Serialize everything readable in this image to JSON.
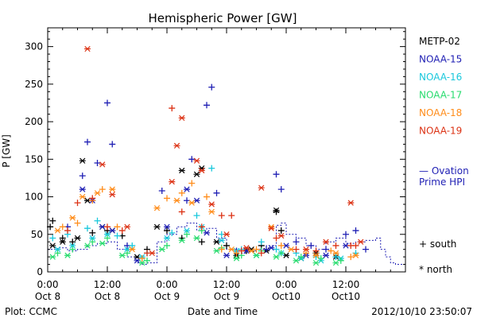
{
  "chart_data": {
    "type": "scatter",
    "title": "Hemispheric Power [GW]",
    "ylabel": "P [GW]",
    "xlabel": "Date and Time",
    "ylim": [
      0,
      325
    ],
    "xlim_hours": [
      0,
      72
    ],
    "y_ticks": [
      0,
      50,
      100,
      150,
      200,
      250,
      300
    ],
    "x_ticks": [
      {
        "h": 0,
        "time": "0:00",
        "day": "Oct 8"
      },
      {
        "h": 12,
        "time": "12:00",
        "day": "Oct 8"
      },
      {
        "h": 24,
        "time": "0:00",
        "day": "Oct 9"
      },
      {
        "h": 36,
        "time": "12:00",
        "day": "Oct 9"
      },
      {
        "h": 48,
        "time": "0:00",
        "day": "Oct10"
      },
      {
        "h": 60,
        "time": "12:00",
        "day": "Oct10"
      }
    ],
    "footer_left": "Plot: CCMC",
    "footer_right": "2012/10/10 23:50:07",
    "ovation_label": [
      "— Ovation",
      "Prime HPI"
    ],
    "symbol_legend": {
      "south": "+ south",
      "north": "* north"
    },
    "series": [
      {
        "name": "METP-02",
        "color": "#000000",
        "south": [
          [
            0.5,
            60
          ],
          [
            1,
            68
          ],
          [
            3,
            45
          ],
          [
            5,
            40
          ],
          [
            9,
            52
          ],
          [
            12,
            55
          ],
          [
            15,
            48
          ],
          [
            20,
            30
          ],
          [
            24,
            55
          ],
          [
            27,
            45
          ],
          [
            31,
            40
          ],
          [
            36,
            35
          ],
          [
            40,
            28
          ],
          [
            43,
            35
          ],
          [
            46,
            80
          ],
          [
            47,
            55
          ]
        ],
        "north": [
          [
            1,
            35
          ],
          [
            3,
            40
          ],
          [
            6,
            45
          ],
          [
            7,
            148
          ],
          [
            8,
            95
          ],
          [
            11,
            60
          ],
          [
            13,
            55
          ],
          [
            18,
            20
          ],
          [
            22,
            60
          ],
          [
            27,
            135
          ],
          [
            30,
            130
          ],
          [
            31,
            138
          ],
          [
            34,
            40
          ],
          [
            38,
            22
          ],
          [
            41,
            30
          ],
          [
            44,
            28
          ],
          [
            46,
            82
          ],
          [
            48,
            22
          ],
          [
            51,
            18
          ],
          [
            54,
            25
          ],
          [
            58,
            20
          ]
        ]
      },
      {
        "name": "NOAA-15",
        "color": "#1f1fb4",
        "south": [
          [
            8,
            173
          ],
          [
            12,
            225
          ],
          [
            13,
            170
          ],
          [
            10,
            145
          ],
          [
            7,
            128
          ],
          [
            4,
            60
          ],
          [
            16,
            35
          ],
          [
            23,
            108
          ],
          [
            29,
            150
          ],
          [
            32,
            222
          ],
          [
            33,
            246
          ],
          [
            34,
            105
          ],
          [
            28,
            95
          ],
          [
            38,
            28
          ],
          [
            44,
            30
          ],
          [
            46,
            130
          ],
          [
            47,
            110
          ],
          [
            50,
            40
          ],
          [
            53,
            35
          ],
          [
            56,
            30
          ],
          [
            60,
            50
          ],
          [
            62,
            55
          ],
          [
            64,
            30
          ]
        ],
        "north": [
          [
            7,
            110
          ],
          [
            9,
            95
          ],
          [
            11,
            60
          ],
          [
            13,
            55
          ],
          [
            18,
            15
          ],
          [
            24,
            60
          ],
          [
            28,
            110
          ],
          [
            30,
            95
          ],
          [
            32,
            52
          ],
          [
            36,
            22
          ],
          [
            40,
            28
          ],
          [
            45,
            32
          ],
          [
            48,
            35
          ],
          [
            52,
            22
          ],
          [
            56,
            22
          ],
          [
            60,
            35
          ]
        ]
      },
      {
        "name": "NOAA-16",
        "color": "#19c8dc",
        "south": [
          [
            1,
            45
          ],
          [
            4,
            50
          ],
          [
            8,
            58
          ],
          [
            10,
            68
          ],
          [
            14,
            48
          ],
          [
            17,
            35
          ],
          [
            20,
            25
          ],
          [
            25,
            52
          ],
          [
            30,
            75
          ],
          [
            33,
            138
          ],
          [
            35,
            50
          ],
          [
            39,
            30
          ],
          [
            43,
            40
          ],
          [
            46,
            30
          ],
          [
            50,
            25
          ],
          [
            54,
            20
          ],
          [
            58,
            20
          ],
          [
            62,
            25
          ]
        ],
        "north": [
          [
            2,
            30
          ],
          [
            5,
            35
          ],
          [
            9,
            45
          ],
          [
            12,
            50
          ],
          [
            16,
            30
          ],
          [
            19,
            20
          ],
          [
            24,
            45
          ],
          [
            28,
            55
          ],
          [
            31,
            60
          ],
          [
            35,
            42
          ],
          [
            38,
            28
          ],
          [
            42,
            22
          ],
          [
            47,
            25
          ],
          [
            51,
            18
          ],
          [
            55,
            15
          ],
          [
            59,
            18
          ]
        ]
      },
      {
        "name": "NOAA-17",
        "color": "#28dc6e",
        "south": [
          [
            2,
            25
          ],
          [
            5,
            30
          ],
          [
            9,
            40
          ],
          [
            12,
            45
          ],
          [
            16,
            25
          ],
          [
            20,
            15
          ],
          [
            24,
            35
          ],
          [
            28,
            50
          ],
          [
            31,
            55
          ],
          [
            35,
            32
          ],
          [
            39,
            22
          ],
          [
            43,
            28
          ],
          [
            47,
            25
          ],
          [
            51,
            20
          ],
          [
            55,
            18
          ],
          [
            59,
            15
          ]
        ],
        "north": [
          [
            1,
            20
          ],
          [
            4,
            22
          ],
          [
            8,
            35
          ],
          [
            11,
            38
          ],
          [
            15,
            22
          ],
          [
            19,
            12
          ],
          [
            23,
            30
          ],
          [
            27,
            42
          ],
          [
            30,
            45
          ],
          [
            34,
            28
          ],
          [
            38,
            18
          ],
          [
            42,
            22
          ],
          [
            46,
            20
          ],
          [
            50,
            15
          ],
          [
            54,
            12
          ],
          [
            58,
            12
          ]
        ]
      },
      {
        "name": "NOAA-18",
        "color": "#ff8c19",
        "south": [
          [
            3,
            60
          ],
          [
            6,
            65
          ],
          [
            9,
            95
          ],
          [
            11,
            110
          ],
          [
            14,
            60
          ],
          [
            19,
            18
          ],
          [
            24,
            98
          ],
          [
            27,
            105
          ],
          [
            29,
            118
          ],
          [
            32,
            100
          ],
          [
            35,
            30
          ],
          [
            38,
            25
          ],
          [
            42,
            30
          ],
          [
            47,
            35
          ],
          [
            52,
            25
          ],
          [
            57,
            28
          ],
          [
            61,
            20
          ]
        ],
        "north": [
          [
            2,
            55
          ],
          [
            5,
            72
          ],
          [
            7,
            100
          ],
          [
            10,
            105
          ],
          [
            13,
            110
          ],
          [
            17,
            30
          ],
          [
            22,
            85
          ],
          [
            26,
            95
          ],
          [
            29,
            92
          ],
          [
            33,
            80
          ],
          [
            37,
            30
          ],
          [
            41,
            28
          ],
          [
            45,
            60
          ],
          [
            49,
            30
          ],
          [
            54,
            22
          ],
          [
            58,
            25
          ],
          [
            62,
            22
          ]
        ]
      },
      {
        "name": "NOAA-19",
        "color": "#dc3214",
        "south": [
          [
            4,
            55
          ],
          [
            6,
            92
          ],
          [
            9,
            98
          ],
          [
            12,
            60
          ],
          [
            15,
            55
          ],
          [
            20,
            25
          ],
          [
            25,
            218
          ],
          [
            27,
            80
          ],
          [
            31,
            60
          ],
          [
            35,
            75
          ],
          [
            37,
            75
          ],
          [
            39,
            28
          ],
          [
            43,
            25
          ],
          [
            46,
            45
          ],
          [
            50,
            30
          ],
          [
            54,
            28
          ],
          [
            58,
            35
          ],
          [
            61,
            35
          ],
          [
            62,
            35
          ]
        ],
        "north": [
          [
            8,
            297
          ],
          [
            11,
            143
          ],
          [
            13,
            103
          ],
          [
            16,
            60
          ],
          [
            21,
            25
          ],
          [
            25,
            120
          ],
          [
            26,
            168
          ],
          [
            27,
            205
          ],
          [
            30,
            148
          ],
          [
            31,
            135
          ],
          [
            33,
            90
          ],
          [
            36,
            50
          ],
          [
            40,
            32
          ],
          [
            43,
            112
          ],
          [
            45,
            58
          ],
          [
            47,
            48
          ],
          [
            52,
            30
          ],
          [
            56,
            40
          ],
          [
            61,
            92
          ],
          [
            63,
            40
          ]
        ]
      }
    ],
    "ovation_hpi": [
      [
        0,
        30
      ],
      [
        2,
        32
      ],
      [
        4,
        28
      ],
      [
        6,
        30
      ],
      [
        8,
        35
      ],
      [
        10,
        38
      ],
      [
        12,
        40
      ],
      [
        14,
        30
      ],
      [
        16,
        20
      ],
      [
        18,
        12
      ],
      [
        19,
        10
      ],
      [
        20,
        12
      ],
      [
        22,
        40
      ],
      [
        24,
        50
      ],
      [
        26,
        60
      ],
      [
        28,
        65
      ],
      [
        30,
        55
      ],
      [
        32,
        58
      ],
      [
        34,
        45
      ],
      [
        36,
        30
      ],
      [
        38,
        25
      ],
      [
        40,
        28
      ],
      [
        42,
        30
      ],
      [
        44,
        35
      ],
      [
        46,
        62
      ],
      [
        47,
        65
      ],
      [
        48,
        50
      ],
      [
        50,
        45
      ],
      [
        52,
        35
      ],
      [
        54,
        30
      ],
      [
        56,
        40
      ],
      [
        58,
        45
      ],
      [
        60,
        38
      ],
      [
        62,
        40
      ],
      [
        64,
        42
      ],
      [
        66,
        45
      ],
      [
        67,
        30
      ],
      [
        68,
        20
      ],
      [
        69,
        12
      ],
      [
        70,
        10
      ],
      [
        72,
        12
      ]
    ]
  }
}
